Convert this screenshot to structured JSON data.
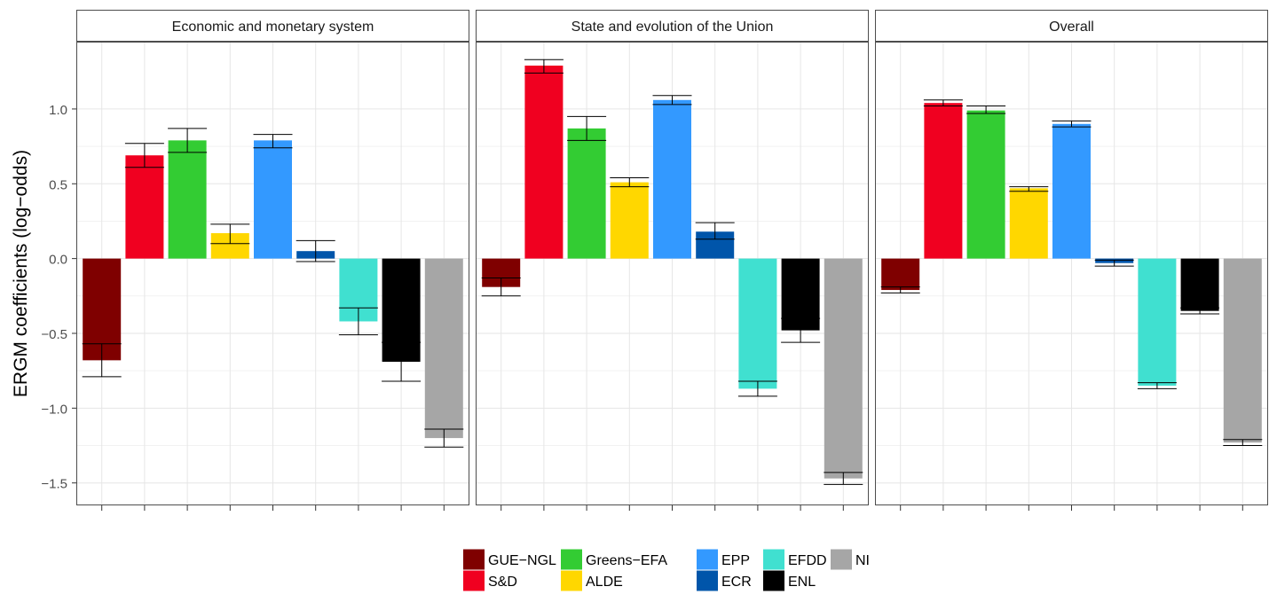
{
  "chart_data": {
    "type": "bar",
    "ylabel": "ERGM coefficients (log−odds)",
    "xlabel": "",
    "ylim": [
      -1.65,
      1.45
    ],
    "yticks": [
      1.0,
      0.5,
      0.0,
      -0.5,
      -1.0,
      -1.5
    ],
    "ytick_labels": [
      "1.0",
      "0.5",
      "0.0",
      "−0.5",
      "−1.0",
      "−1.5"
    ],
    "grid": true,
    "legend_position": "bottom",
    "categories": [
      "GUE−NGL",
      "S&D",
      "Greens−EFA",
      "ALDE",
      "EPP",
      "ECR",
      "EFDD",
      "ENL",
      "NI"
    ],
    "colors": [
      "#7f0000",
      "#f00020",
      "#33cc33",
      "#ffd700",
      "#3399ff",
      "#0055aa",
      "#40e0d0",
      "#000000",
      "#a6a6a6"
    ],
    "panels": [
      {
        "title": "Economic and monetary system",
        "values": [
          -0.68,
          0.69,
          0.79,
          0.17,
          0.79,
          0.05,
          -0.42,
          -0.69,
          -1.2
        ],
        "ci_low": [
          -0.79,
          0.61,
          0.71,
          0.1,
          0.74,
          -0.02,
          -0.51,
          -0.82,
          -1.26
        ],
        "ci_high": [
          -0.57,
          0.77,
          0.87,
          0.23,
          0.83,
          0.12,
          -0.33,
          -0.56,
          -1.14
        ]
      },
      {
        "title": "State and evolution of the Union",
        "values": [
          -0.19,
          1.29,
          0.87,
          0.51,
          1.06,
          0.18,
          -0.87,
          -0.48,
          -1.47
        ],
        "ci_low": [
          -0.25,
          1.24,
          0.79,
          0.48,
          1.03,
          0.13,
          -0.92,
          -0.56,
          -1.51
        ],
        "ci_high": [
          -0.13,
          1.33,
          0.95,
          0.54,
          1.09,
          0.24,
          -0.82,
          -0.4,
          -1.43
        ]
      },
      {
        "title": "Overall",
        "values": [
          -0.21,
          1.04,
          0.99,
          0.47,
          0.9,
          -0.03,
          -0.85,
          -0.35,
          -1.23
        ],
        "ci_low": [
          -0.23,
          1.02,
          0.97,
          0.45,
          0.88,
          -0.05,
          -0.87,
          -0.37,
          -1.25
        ],
        "ci_high": [
          -0.19,
          1.06,
          1.02,
          0.48,
          0.92,
          -0.01,
          -0.83,
          -0.33,
          -1.21
        ]
      }
    ],
    "legend": [
      [
        "GUE−NGL",
        "Greens−EFA",
        "EPP",
        "EFDD",
        "NI"
      ],
      [
        "S&D",
        "ALDE",
        "ECR",
        "ENL"
      ]
    ]
  }
}
